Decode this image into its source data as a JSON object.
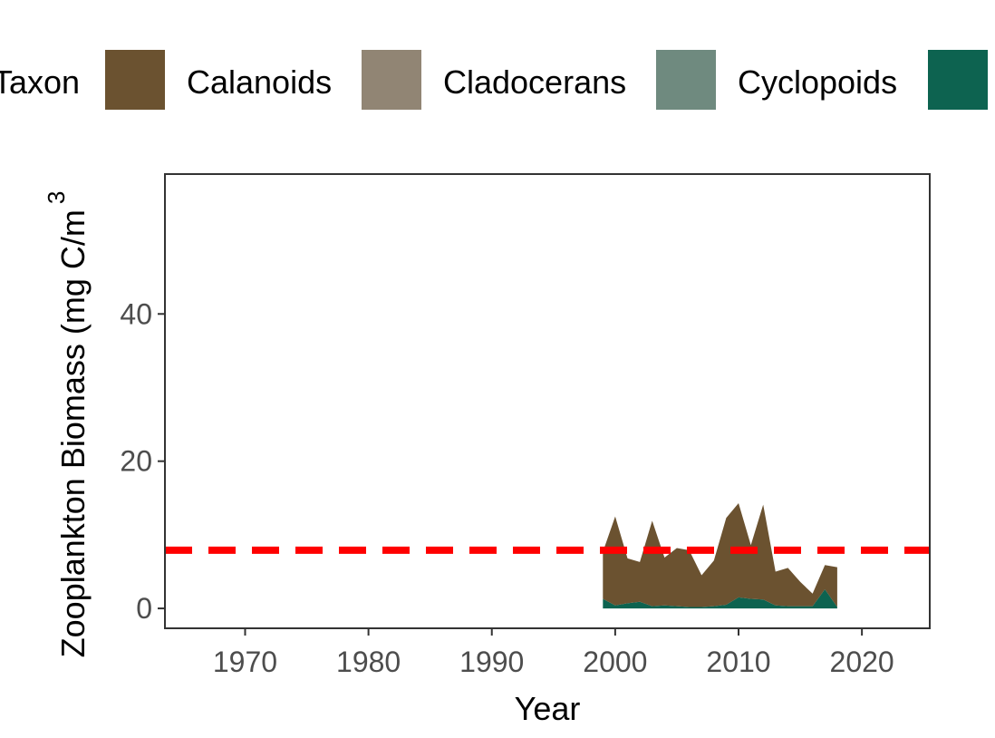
{
  "chart_data": {
    "type": "area",
    "title": "",
    "xlabel": "Year",
    "ylabel": "Zooplankton Biomass (mg C/m",
    "ylabel_sup": "3",
    "xlim": [
      1963.5,
      2025.5
    ],
    "ylim": [
      -2.7,
      59
    ],
    "x_ticks": [
      1970,
      1980,
      1990,
      2000,
      2010,
      2020
    ],
    "y_ticks": [
      0,
      20,
      40
    ],
    "grid": false,
    "legend": {
      "title": "Taxon",
      "position": "top",
      "entries": [
        {
          "name": "Calanoids",
          "color": "#6b5230"
        },
        {
          "name": "Cladocerans",
          "color": "#918574"
        },
        {
          "name": "Cyclopoids",
          "color": "#6f8a7f"
        },
        {
          "name": "",
          "color": "#0d6350"
        }
      ]
    },
    "reference_line": {
      "y": 7.9,
      "color": "#ff0000",
      "style": "dashed"
    },
    "x": [
      1999,
      2000,
      2001,
      2002,
      2003,
      2004,
      2005,
      2006,
      2007,
      2008,
      2009,
      2010,
      2011,
      2012,
      2013,
      2014,
      2015,
      2016,
      2017,
      2018
    ],
    "series": [
      {
        "name": "",
        "color": "#0d6350",
        "values": [
          1.3,
          0.4,
          0.7,
          0.9,
          0.3,
          0.4,
          0.3,
          0.2,
          0.2,
          0.3,
          0.5,
          1.5,
          1.3,
          1.2,
          0.4,
          0.3,
          0.3,
          0.3,
          2.6,
          0.2
        ]
      },
      {
        "name": "Cyclopoids",
        "color": "#6f8a7f",
        "values": [
          0,
          0,
          0,
          0,
          0,
          0,
          0,
          0,
          0,
          0,
          0,
          0,
          0,
          0,
          0,
          0,
          0,
          0,
          0,
          0
        ]
      },
      {
        "name": "Cladocerans",
        "color": "#918574",
        "values": [
          0,
          0,
          0,
          0,
          0,
          0,
          0,
          0,
          0,
          0,
          0,
          0,
          0,
          0,
          0,
          0,
          0,
          0,
          0,
          0
        ]
      },
      {
        "name": "Calanoids",
        "color": "#6b5230",
        "values": [
          6.4,
          12.1,
          6.1,
          5.4,
          11.6,
          6.5,
          7.9,
          7.7,
          4.3,
          6.2,
          11.8,
          12.8,
          7.3,
          12.9,
          4.6,
          5.2,
          3.3,
          1.7,
          3.3,
          5.4
        ]
      }
    ]
  }
}
